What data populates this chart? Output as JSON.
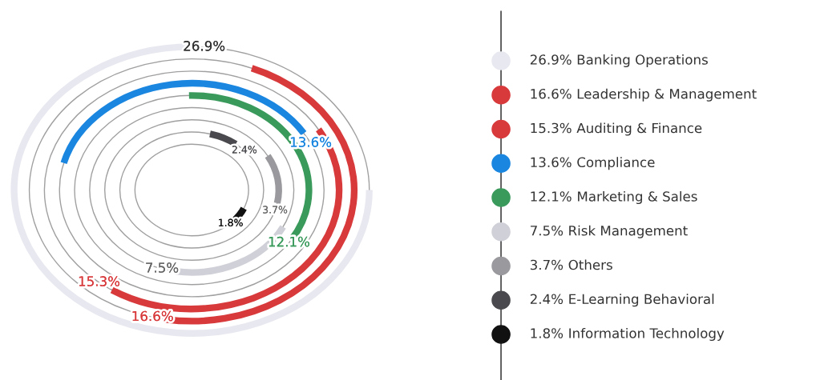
{
  "chart_data": {
    "type": "other",
    "categories": [
      "Banking Operations",
      "Leadership & Management",
      "Auditing & Finance",
      "Compliance",
      "Marketing & Sales",
      "Risk Management",
      "Others",
      "E-Learning Behavioral",
      "Information Technology"
    ],
    "values": [
      26.9,
      16.6,
      15.3,
      13.6,
      12.1,
      7.5,
      3.7,
      2.4,
      1.8
    ],
    "value_labels": [
      "26.9%",
      "16.6%",
      "15.3%",
      "13.6%",
      "12.1%",
      "7.5%",
      "3.7%",
      "2.4%",
      "1.8%"
    ],
    "colors": [
      "#e8e8f0",
      "#d83a3c",
      "#d83a3c",
      "#1a86e0",
      "#3a9a5c",
      "#d0d0d8",
      "#9a9a9e",
      "#4a4a4e",
      "#111111"
    ]
  }
}
